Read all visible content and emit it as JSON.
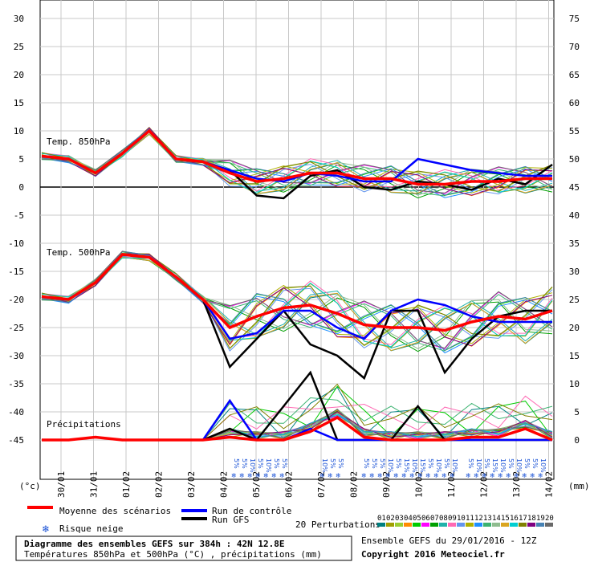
{
  "chart_data": {
    "type": "line",
    "title": "Diagramme des ensembles GEFS sur 384h : 42N 12.8E",
    "subtitle": "Températures 850hPa et 500hPa (°C) , précipitations (mm)",
    "run_info": "Ensemble GEFS du 29/01/2016 - 12Z",
    "copyright": "Copyright 2016 Meteociel.fr",
    "left_axis_unit": "(°c)",
    "right_axis_unit": "(mm)",
    "left_ticks": [
      "30",
      "25",
      "20",
      "15",
      "10",
      "5",
      "0",
      "-5",
      "-10",
      "-15",
      "-20",
      "-25",
      "-30",
      "-35",
      "-40",
      "-45"
    ],
    "right_ticks": [
      "75",
      "70",
      "65",
      "60",
      "55",
      "50",
      "45",
      "40",
      "35",
      "30",
      "25",
      "20",
      "15",
      "10",
      "5",
      "0"
    ],
    "dates": [
      "30/01",
      "31/01",
      "01/02",
      "02/02",
      "03/02",
      "04/02",
      "05/02",
      "06/02",
      "07/02",
      "08/02",
      "09/02",
      "10/02",
      "11/02",
      "12/02",
      "13/02",
      "14/02"
    ],
    "panel_labels": {
      "t850": "Temp. 850hPa",
      "t500": "Temp. 500hPa",
      "precip": "Précipitations"
    },
    "legend": {
      "mean": "Moyenne des scénarios",
      "control": "Run de contrôle",
      "gfs": "Run GFS",
      "snow": "Risque neige",
      "perturbations": "20 Perturbations",
      "pert_numbers": [
        "01",
        "02",
        "03",
        "04",
        "05",
        "06",
        "07",
        "08",
        "09",
        "10",
        "11",
        "12",
        "13",
        "14",
        "15",
        "16",
        "17",
        "18",
        "19",
        "20"
      ]
    },
    "colors": {
      "mean": "#ff0000",
      "control": "#0000ff",
      "gfs": "#000000",
      "snow": "#1a52d6",
      "perturbations": [
        "#008080",
        "#a0a000",
        "#9acd32",
        "#ff8c00",
        "#00cc00",
        "#ff00ff",
        "#00a000",
        "#20b2aa",
        "#ff69b4",
        "#6495ed",
        "#b0b000",
        "#1e90ff",
        "#3cb371",
        "#8fbc8f",
        "#daa520",
        "#00ced1",
        "#808000",
        "#800080",
        "#4682b4",
        "#696969"
      ]
    },
    "series": [
      {
        "name": "Moyenne des scénarios",
        "t850": [
          5.5,
          5,
          2.5,
          6,
          10,
          5,
          4.5,
          2.5,
          1,
          1.5,
          2.5,
          2.5,
          1.5,
          1.5,
          0.5,
          0.5,
          1,
          1,
          1.5,
          1.5
        ],
        "t500": [
          -19.5,
          -20,
          -17,
          -12,
          -12.5,
          -16,
          -20,
          -25,
          -23,
          -21.5,
          -21,
          -22.5,
          -24.5,
          -25,
          -25,
          -25.5,
          -24,
          -23,
          -23.5,
          -22
        ],
        "precip": [
          0,
          0,
          0.5,
          0,
          0,
          0,
          0,
          0.5,
          0,
          0,
          1.5,
          4,
          0.5,
          0,
          0,
          0,
          0.5,
          0.5,
          2,
          0
        ]
      },
      {
        "name": "Run de contrôle",
        "t850": [
          5.5,
          5,
          2.5,
          6,
          10,
          5,
          4.5,
          3,
          1.5,
          1,
          2.5,
          2,
          1,
          1,
          5,
          4,
          3,
          2.5,
          2,
          2
        ],
        "t500": [
          -19.5,
          -20,
          -17,
          -12,
          -12.5,
          -16,
          -20,
          -27,
          -26,
          -22,
          -22,
          -25,
          -27,
          -22,
          -20,
          -21,
          -23,
          -24,
          -24,
          -24
        ],
        "precip": [
          0,
          0,
          0.5,
          0,
          0,
          0,
          0,
          7,
          0,
          0,
          2,
          0,
          0,
          0,
          0,
          0,
          0,
          0,
          0,
          0
        ]
      },
      {
        "name": "Run GFS",
        "t850": [
          5.5,
          5,
          2.5,
          6,
          10,
          5,
          4.5,
          3,
          -1.5,
          -2,
          2,
          3,
          0,
          -0.5,
          1,
          0.5,
          -0.5,
          1.5,
          0.5,
          4
        ],
        "t500": [
          -19.5,
          -20,
          -17,
          -12,
          -12.5,
          -16,
          -20,
          -32,
          -27,
          -22,
          -28,
          -30,
          -34,
          -22,
          -22,
          -33,
          -27,
          -23,
          -22,
          -22
        ],
        "precip": [
          0,
          0,
          0.5,
          0,
          0,
          0,
          0,
          2,
          0,
          6,
          12,
          0,
          0,
          0,
          6,
          0,
          0,
          0,
          0,
          0
        ]
      }
    ],
    "snow_groups": [
      {
        "date": "05/02",
        "labels": [
          "5%",
          "5%",
          "10%",
          "5%",
          "10%",
          "5%",
          "5%"
        ]
      },
      {
        "date": "07/02",
        "labels": [
          "10%",
          "5%",
          "5%"
        ]
      },
      {
        "date": "10/02",
        "labels": [
          "5%",
          "5%",
          "5%",
          "10%",
          "5%",
          "15%",
          "10%",
          "15%",
          "5%",
          "10%",
          "5%",
          "10%"
        ]
      },
      {
        "date": "13/02",
        "labels": [
          "5%",
          "10%",
          "5%",
          "15%",
          "10%",
          "5%",
          "10%",
          "5%",
          "5%",
          "10%"
        ]
      }
    ]
  }
}
